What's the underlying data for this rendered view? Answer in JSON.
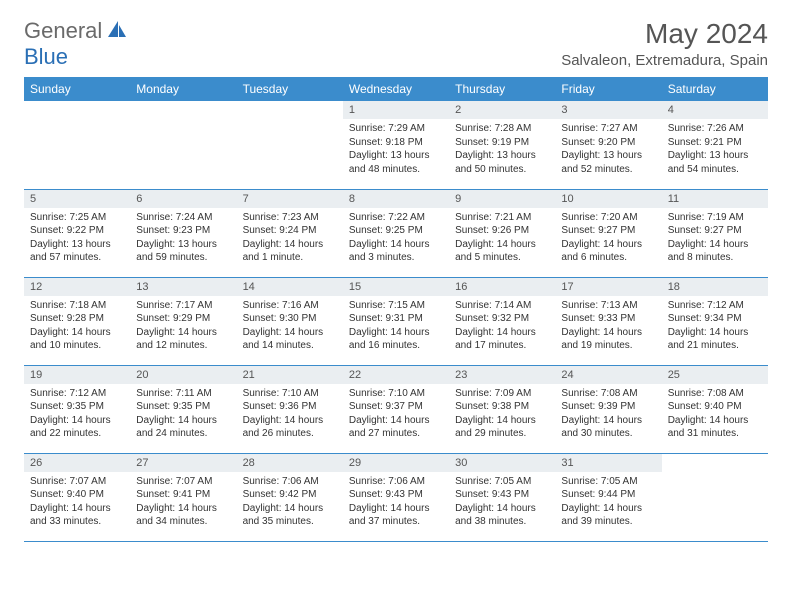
{
  "logo": {
    "general": "General",
    "blue": "Blue"
  },
  "title": {
    "month": "May 2024",
    "location": "Salvaleon, Extremadura, Spain"
  },
  "colors": {
    "header_bg": "#3b8ccc",
    "header_text": "#ffffff",
    "daynum_bg": "#eaeef1",
    "border": "#3b8ccc",
    "text": "#333333",
    "logo_gray": "#6a6a6a",
    "logo_blue": "#2a6fb5"
  },
  "dayNames": [
    "Sunday",
    "Monday",
    "Tuesday",
    "Wednesday",
    "Thursday",
    "Friday",
    "Saturday"
  ],
  "weeks": [
    [
      null,
      null,
      null,
      {
        "n": "1",
        "sr": "7:29 AM",
        "ss": "9:18 PM",
        "dl": "13 hours and 48 minutes."
      },
      {
        "n": "2",
        "sr": "7:28 AM",
        "ss": "9:19 PM",
        "dl": "13 hours and 50 minutes."
      },
      {
        "n": "3",
        "sr": "7:27 AM",
        "ss": "9:20 PM",
        "dl": "13 hours and 52 minutes."
      },
      {
        "n": "4",
        "sr": "7:26 AM",
        "ss": "9:21 PM",
        "dl": "13 hours and 54 minutes."
      }
    ],
    [
      {
        "n": "5",
        "sr": "7:25 AM",
        "ss": "9:22 PM",
        "dl": "13 hours and 57 minutes."
      },
      {
        "n": "6",
        "sr": "7:24 AM",
        "ss": "9:23 PM",
        "dl": "13 hours and 59 minutes."
      },
      {
        "n": "7",
        "sr": "7:23 AM",
        "ss": "9:24 PM",
        "dl": "14 hours and 1 minute."
      },
      {
        "n": "8",
        "sr": "7:22 AM",
        "ss": "9:25 PM",
        "dl": "14 hours and 3 minutes."
      },
      {
        "n": "9",
        "sr": "7:21 AM",
        "ss": "9:26 PM",
        "dl": "14 hours and 5 minutes."
      },
      {
        "n": "10",
        "sr": "7:20 AM",
        "ss": "9:27 PM",
        "dl": "14 hours and 6 minutes."
      },
      {
        "n": "11",
        "sr": "7:19 AM",
        "ss": "9:27 PM",
        "dl": "14 hours and 8 minutes."
      }
    ],
    [
      {
        "n": "12",
        "sr": "7:18 AM",
        "ss": "9:28 PM",
        "dl": "14 hours and 10 minutes."
      },
      {
        "n": "13",
        "sr": "7:17 AM",
        "ss": "9:29 PM",
        "dl": "14 hours and 12 minutes."
      },
      {
        "n": "14",
        "sr": "7:16 AM",
        "ss": "9:30 PM",
        "dl": "14 hours and 14 minutes."
      },
      {
        "n": "15",
        "sr": "7:15 AM",
        "ss": "9:31 PM",
        "dl": "14 hours and 16 minutes."
      },
      {
        "n": "16",
        "sr": "7:14 AM",
        "ss": "9:32 PM",
        "dl": "14 hours and 17 minutes."
      },
      {
        "n": "17",
        "sr": "7:13 AM",
        "ss": "9:33 PM",
        "dl": "14 hours and 19 minutes."
      },
      {
        "n": "18",
        "sr": "7:12 AM",
        "ss": "9:34 PM",
        "dl": "14 hours and 21 minutes."
      }
    ],
    [
      {
        "n": "19",
        "sr": "7:12 AM",
        "ss": "9:35 PM",
        "dl": "14 hours and 22 minutes."
      },
      {
        "n": "20",
        "sr": "7:11 AM",
        "ss": "9:35 PM",
        "dl": "14 hours and 24 minutes."
      },
      {
        "n": "21",
        "sr": "7:10 AM",
        "ss": "9:36 PM",
        "dl": "14 hours and 26 minutes."
      },
      {
        "n": "22",
        "sr": "7:10 AM",
        "ss": "9:37 PM",
        "dl": "14 hours and 27 minutes."
      },
      {
        "n": "23",
        "sr": "7:09 AM",
        "ss": "9:38 PM",
        "dl": "14 hours and 29 minutes."
      },
      {
        "n": "24",
        "sr": "7:08 AM",
        "ss": "9:39 PM",
        "dl": "14 hours and 30 minutes."
      },
      {
        "n": "25",
        "sr": "7:08 AM",
        "ss": "9:40 PM",
        "dl": "14 hours and 31 minutes."
      }
    ],
    [
      {
        "n": "26",
        "sr": "7:07 AM",
        "ss": "9:40 PM",
        "dl": "14 hours and 33 minutes."
      },
      {
        "n": "27",
        "sr": "7:07 AM",
        "ss": "9:41 PM",
        "dl": "14 hours and 34 minutes."
      },
      {
        "n": "28",
        "sr": "7:06 AM",
        "ss": "9:42 PM",
        "dl": "14 hours and 35 minutes."
      },
      {
        "n": "29",
        "sr": "7:06 AM",
        "ss": "9:43 PM",
        "dl": "14 hours and 37 minutes."
      },
      {
        "n": "30",
        "sr": "7:05 AM",
        "ss": "9:43 PM",
        "dl": "14 hours and 38 minutes."
      },
      {
        "n": "31",
        "sr": "7:05 AM",
        "ss": "9:44 PM",
        "dl": "14 hours and 39 minutes."
      },
      null
    ]
  ],
  "labels": {
    "sunrise": "Sunrise:",
    "sunset": "Sunset:",
    "daylight": "Daylight:"
  }
}
